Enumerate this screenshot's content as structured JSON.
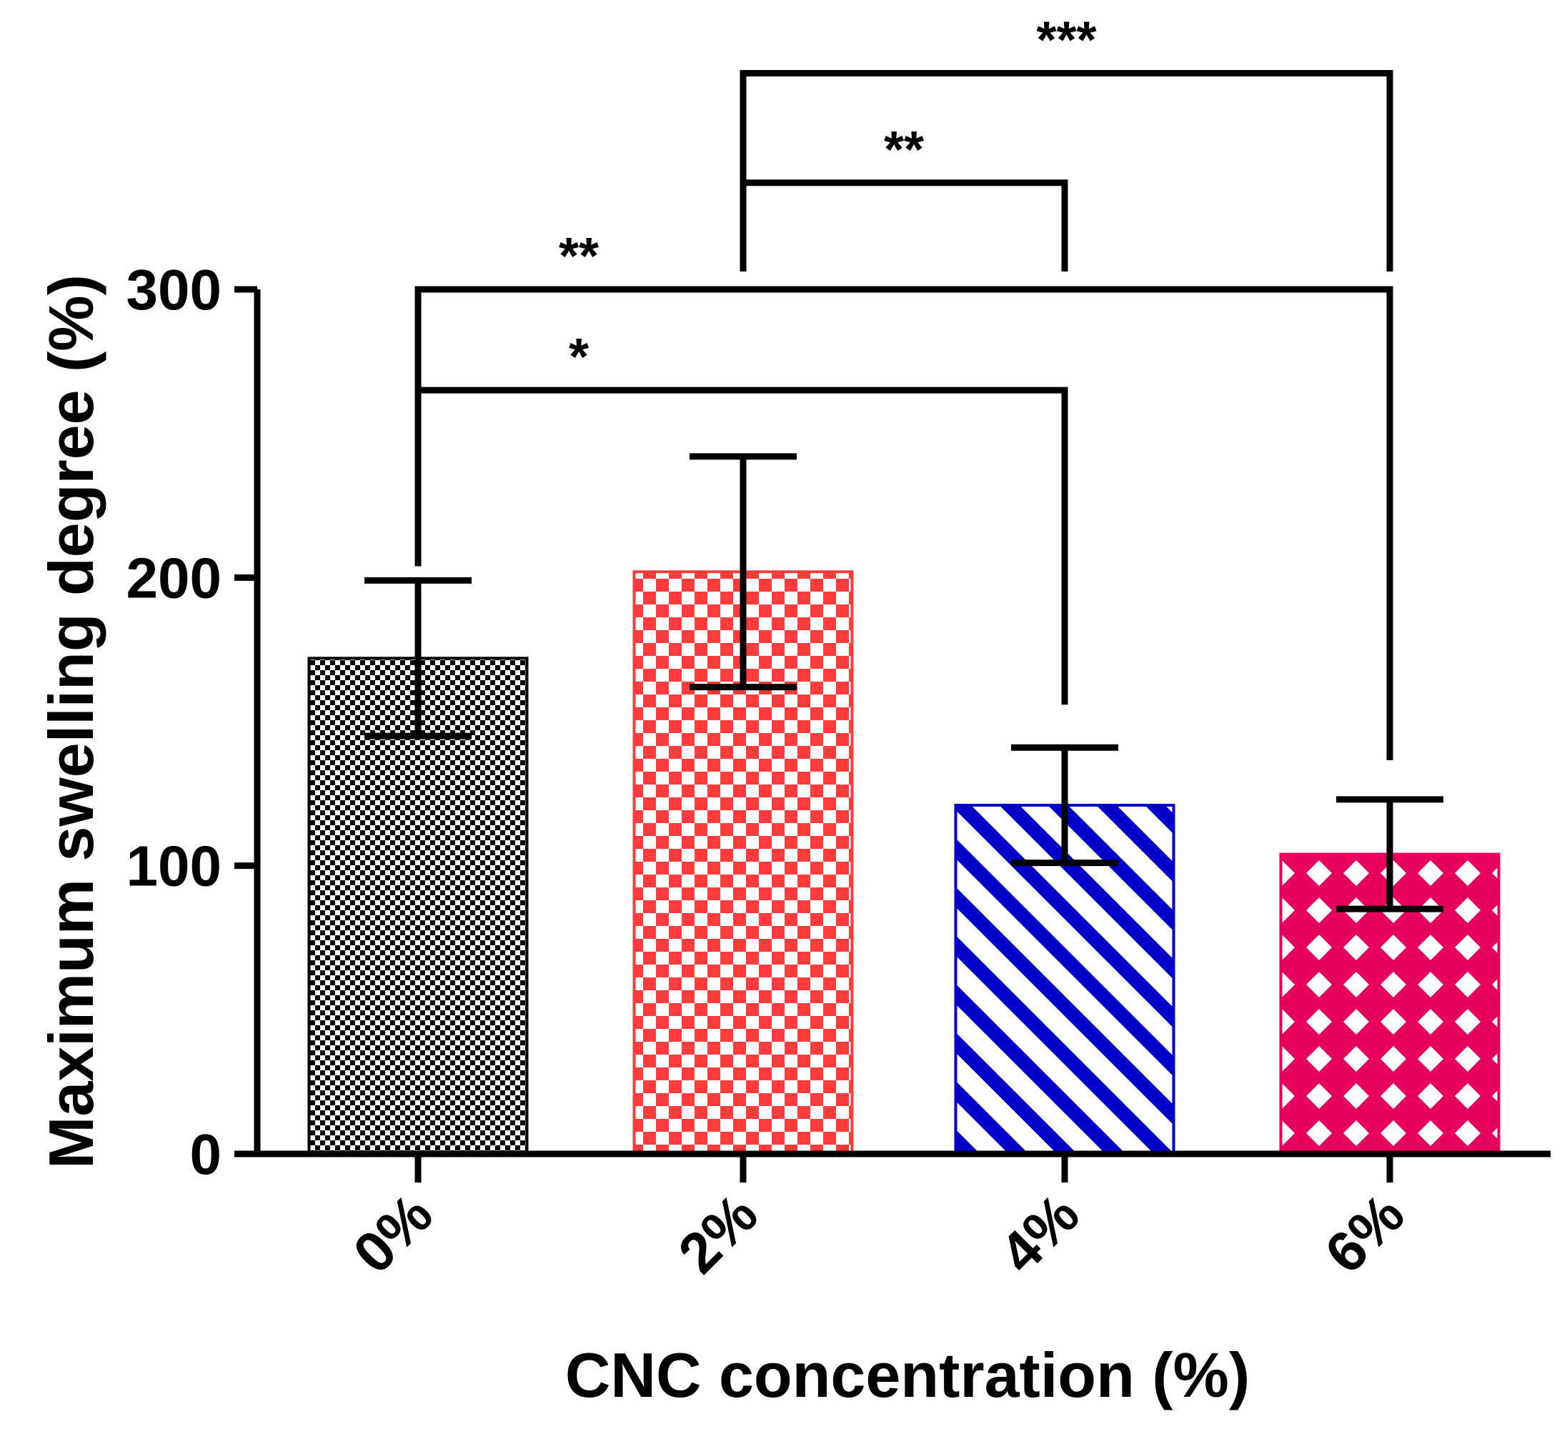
{
  "chart_data": {
    "type": "bar",
    "title": "",
    "xlabel": "CNC concentration (%)",
    "ylabel": "Maximum swelling degree (%)",
    "ylim": [
      0,
      300
    ],
    "yticks": [
      "0",
      "100",
      "200",
      "300"
    ],
    "ytick_values": [
      0,
      100,
      200,
      300
    ],
    "categories": [
      "0%",
      "2%",
      "4%",
      "6%"
    ],
    "values": [
      172,
      202,
      121,
      104
    ],
    "errors": [
      27,
      40,
      20,
      19
    ],
    "bar_styles": [
      {
        "color": "#000000",
        "pattern": "fine-checker"
      },
      {
        "color": "#ff3b3b",
        "pattern": "checker"
      },
      {
        "color": "#0000c8",
        "pattern": "diagonal-stripes"
      },
      {
        "color": "#e8005f",
        "pattern": "crosshatch-diamond"
      }
    ],
    "significance": [
      {
        "from": 0,
        "to": 2,
        "label": "*",
        "y": 265
      },
      {
        "from": 0,
        "to": 3,
        "label": "**",
        "y": 300
      },
      {
        "from": 1,
        "to": 2,
        "label": "**",
        "y": 337
      },
      {
        "from": 1,
        "to": 3,
        "label": "***",
        "y": 375
      }
    ]
  }
}
